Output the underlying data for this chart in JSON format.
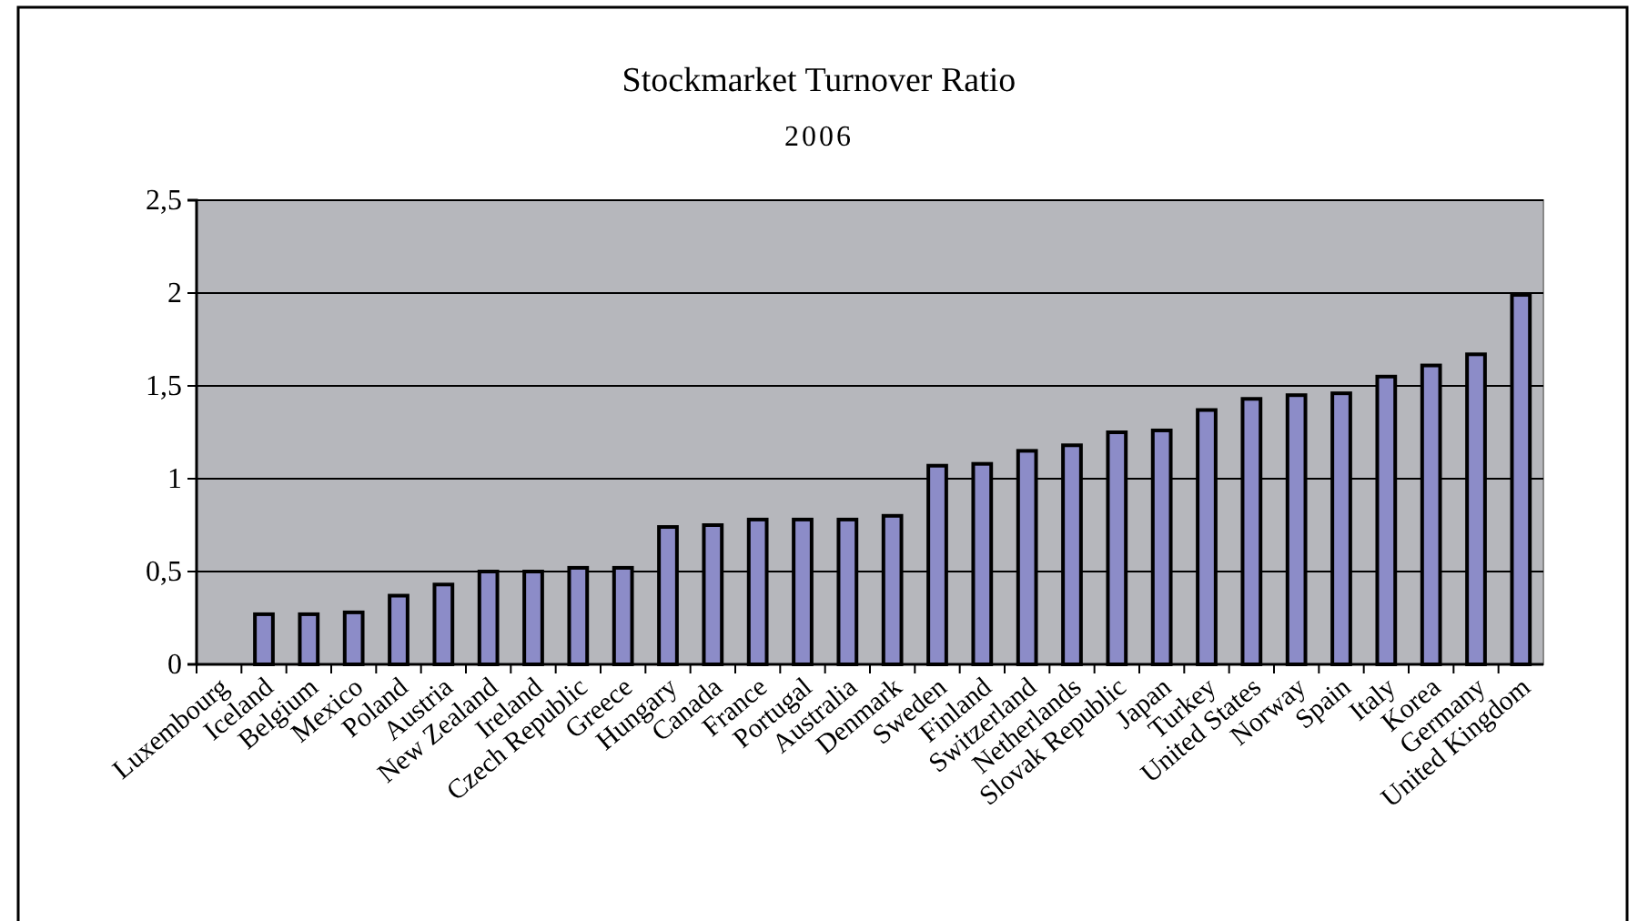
{
  "chart_data": {
    "type": "bar",
    "title": "Stockmarket Turnover Ratio",
    "subtitle": "2006",
    "categories": [
      "Luxembourg",
      "Iceland",
      "Belgium",
      "Mexico",
      "Poland",
      "Austria",
      "New Zealand",
      "Ireland",
      "Czech Republic",
      "Greece",
      "Hungary",
      "Canada",
      "France",
      "Portugal",
      "Australia",
      "Denmark",
      "Sweden",
      "Finland",
      "Switzerland",
      "Netherlands",
      "Slovak Republic",
      "Japan",
      "Turkey",
      "United States",
      "Norway",
      "Spain",
      "Italy",
      "Korea",
      "Germany",
      "United Kingdom"
    ],
    "values": [
      null,
      0.27,
      0.27,
      0.28,
      0.37,
      0.43,
      0.5,
      0.5,
      0.52,
      0.52,
      0.74,
      0.75,
      0.78,
      0.78,
      0.78,
      0.8,
      1.07,
      1.08,
      1.15,
      1.18,
      1.25,
      1.26,
      1.37,
      1.43,
      1.45,
      1.46,
      1.55,
      1.61,
      1.67,
      1.99
    ],
    "color": "#8c8cc8",
    "ylim": [
      0,
      2.5
    ],
    "yticks": [
      0,
      {
        "value": 0.5,
        "label": "0,5"
      },
      1,
      {
        "value": 1.5,
        "label": "1,5"
      },
      2,
      {
        "value": 2.5,
        "label": "2,5"
      }
    ],
    "grid": "y"
  }
}
